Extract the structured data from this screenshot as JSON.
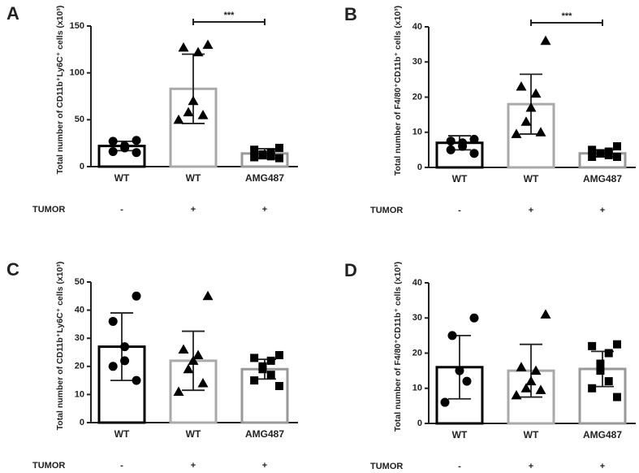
{
  "chart_data": [
    {
      "type": "bar",
      "panel": "A",
      "ylabel": "Total number of CD11b⁺Ly6C⁺ cells (x10³)",
      "categories": [
        "WT",
        "WT",
        "AMG487"
      ],
      "values": [
        22,
        83,
        14
      ],
      "errors": [
        5,
        37,
        5
      ],
      "points": [
        [
          28,
          27,
          22,
          20,
          16,
          15
        ],
        [
          130,
          127,
          122,
          70,
          58,
          55,
          50
        ],
        [
          20,
          18,
          15,
          13,
          12,
          11,
          10,
          9
        ]
      ],
      "colors": [
        "#000000",
        "#aaaaaa",
        "#999999"
      ],
      "markers": [
        "circle",
        "triangle",
        "square"
      ],
      "ylim": [
        0,
        150
      ],
      "yticks": [
        0,
        50,
        100,
        150
      ],
      "significance": {
        "label": "***",
        "groups": [
          1,
          2
        ]
      },
      "row_label": "TUMOR",
      "row_values": [
        "-",
        "+",
        "+"
      ]
    },
    {
      "type": "bar",
      "panel": "B",
      "ylabel": "Total number of F4/80⁺CD11b⁺ cells (x10³)",
      "categories": [
        "WT",
        "WT",
        "AMG487"
      ],
      "values": [
        7,
        18,
        4
      ],
      "errors": [
        2,
        8.5,
        1
      ],
      "points": [
        [
          8,
          7.5,
          7,
          6,
          5,
          4
        ],
        [
          36,
          23,
          21,
          17,
          13,
          10,
          9.5
        ],
        [
          6,
          5,
          4.5,
          4,
          4,
          3.5,
          3,
          3
        ]
      ],
      "colors": [
        "#000000",
        "#aaaaaa",
        "#999999"
      ],
      "markers": [
        "circle",
        "triangle",
        "square"
      ],
      "ylim": [
        0,
        40
      ],
      "yticks": [
        0,
        10,
        20,
        30,
        40
      ],
      "significance": {
        "label": "***",
        "groups": [
          1,
          2
        ]
      },
      "row_label": "TUMOR",
      "row_values": [
        "-",
        "+",
        "+"
      ]
    },
    {
      "type": "bar",
      "panel": "C",
      "ylabel": "Total number of CD11b⁺Ly6C⁺ cells (x10³)",
      "categories": [
        "WT",
        "WT",
        "AMG487"
      ],
      "values": [
        27,
        22,
        19
      ],
      "errors": [
        12,
        10.5,
        3.5
      ],
      "points": [
        [
          45,
          36,
          27,
          22,
          20,
          15
        ],
        [
          45,
          26,
          24,
          22,
          19,
          14,
          11
        ],
        [
          24,
          23,
          22,
          20,
          19,
          17,
          15,
          13
        ]
      ],
      "colors": [
        "#000000",
        "#aaaaaa",
        "#999999"
      ],
      "markers": [
        "circle",
        "triangle",
        "square"
      ],
      "ylim": [
        0,
        50
      ],
      "yticks": [
        0,
        10,
        20,
        30,
        40,
        50
      ],
      "row_label": "TUMOR",
      "row_values": [
        "-",
        "+",
        "+"
      ]
    },
    {
      "type": "bar",
      "panel": "D",
      "ylabel": "Total number of F4/80⁺CD11b⁺ cells (x10³)",
      "categories": [
        "WT",
        "WT",
        "AMG487"
      ],
      "values": [
        16,
        15,
        15.5
      ],
      "errors": [
        9,
        7.5,
        5
      ],
      "points": [
        [
          30,
          25,
          15,
          12,
          6
        ],
        [
          31,
          16,
          15,
          12,
          10,
          9.5,
          8
        ],
        [
          22.5,
          22,
          20,
          17,
          15,
          12,
          10,
          7.5
        ]
      ],
      "colors": [
        "#000000",
        "#aaaaaa",
        "#999999"
      ],
      "markers": [
        "circle",
        "triangle",
        "square"
      ],
      "ylim": [
        0,
        40
      ],
      "yticks": [
        0,
        10,
        20,
        30,
        40
      ],
      "row_label": "TUMOR",
      "row_values": [
        "-",
        "+",
        "+"
      ]
    }
  ]
}
